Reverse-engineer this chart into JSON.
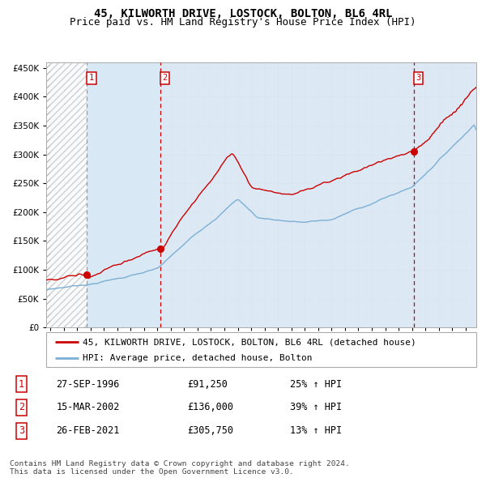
{
  "title": "45, KILWORTH DRIVE, LOSTOCK, BOLTON, BL6 4RL",
  "subtitle": "Price paid vs. HM Land Registry's House Price Index (HPI)",
  "ylim": [
    0,
    460000
  ],
  "yticks": [
    0,
    50000,
    100000,
    150000,
    200000,
    250000,
    300000,
    350000,
    400000,
    450000
  ],
  "xlim_start": 1993.7,
  "xlim_end": 2025.8,
  "sale_times": [
    1996.74,
    2002.21,
    2021.15
  ],
  "sale_prices": [
    91250,
    136000,
    305750
  ],
  "sale_labels": [
    "1",
    "2",
    "3"
  ],
  "sale_pct": [
    "25%",
    "39%",
    "13%"
  ],
  "sale_date_labels": [
    "27-SEP-1996",
    "15-MAR-2002",
    "26-FEB-2021"
  ],
  "sale_price_labels": [
    "£91,250",
    "£136,000",
    "£305,750"
  ],
  "red_line_color": "#cc0000",
  "blue_line_color": "#7bafd4",
  "dot_color": "#cc0000",
  "shade_color": "#dce9f5",
  "grid_color": "#cccccc",
  "legend_label_red": "45, KILWORTH DRIVE, LOSTOCK, BOLTON, BL6 4RL (detached house)",
  "legend_label_blue": "HPI: Average price, detached house, Bolton",
  "footer_text": "Contains HM Land Registry data © Crown copyright and database right 2024.\nThis data is licensed under the Open Government Licence v3.0.",
  "title_fontsize": 10,
  "subtitle_fontsize": 9,
  "tick_fontsize": 7.5
}
